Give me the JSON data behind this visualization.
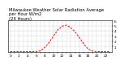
{
  "title": "Milwaukee Weather Solar Radiation Average\nper Hour W/m2\n(24 Hours)",
  "hours": [
    0,
    1,
    2,
    3,
    4,
    5,
    6,
    7,
    8,
    9,
    10,
    11,
    12,
    13,
    14,
    15,
    16,
    17,
    18,
    19,
    20,
    21,
    22,
    23
  ],
  "values": [
    0,
    0,
    0,
    0,
    0,
    0,
    2,
    15,
    80,
    180,
    300,
    420,
    490,
    510,
    460,
    380,
    270,
    150,
    50,
    10,
    1,
    0,
    0,
    0
  ],
  "line_color": "#ff0000",
  "bg_color": "#ffffff",
  "grid_color": "#888888",
  "ylim": [
    0,
    600
  ],
  "yticks": [
    100,
    200,
    300,
    400,
    500,
    600
  ],
  "ytick_labels": [
    "1",
    "2",
    "3",
    "4",
    "5",
    "6"
  ],
  "xticks": [
    0,
    1,
    2,
    3,
    4,
    5,
    6,
    7,
    8,
    9,
    10,
    11,
    12,
    13,
    14,
    15,
    16,
    17,
    18,
    19,
    20,
    21,
    22,
    23
  ],
  "title_fontsize": 3.8,
  "axis_fontsize": 3.2
}
